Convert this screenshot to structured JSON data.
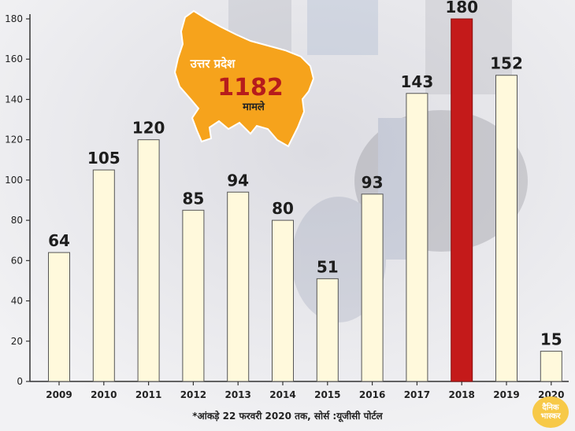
{
  "chart_data": {
    "type": "bar",
    "categories": [
      "2009",
      "2010",
      "2011",
      "2012",
      "2013",
      "2014",
      "2015",
      "2016",
      "2017",
      "2018",
      "2019",
      "2020"
    ],
    "values": [
      64,
      105,
      120,
      85,
      94,
      80,
      51,
      93,
      143,
      180,
      152,
      15
    ],
    "highlight_category": "2018",
    "ylim": [
      0,
      180
    ],
    "yticks": [
      0,
      20,
      40,
      60,
      80,
      100,
      120,
      140,
      160,
      180
    ],
    "grid": false,
    "bar_color": "#fff9dc",
    "highlight_color": "#c41a1a",
    "map": {
      "region_label": "उत्तर प्रदेश",
      "total": "1182",
      "total_label": "मामले",
      "fill_color": "#f6a31c"
    }
  },
  "footnote": "*आंकड़े 22 फरवरी 2020 तक, सोर्स :यूजीसी पोर्टल",
  "logo": {
    "line1": "दैनिक",
    "line2": "भास्कर"
  }
}
